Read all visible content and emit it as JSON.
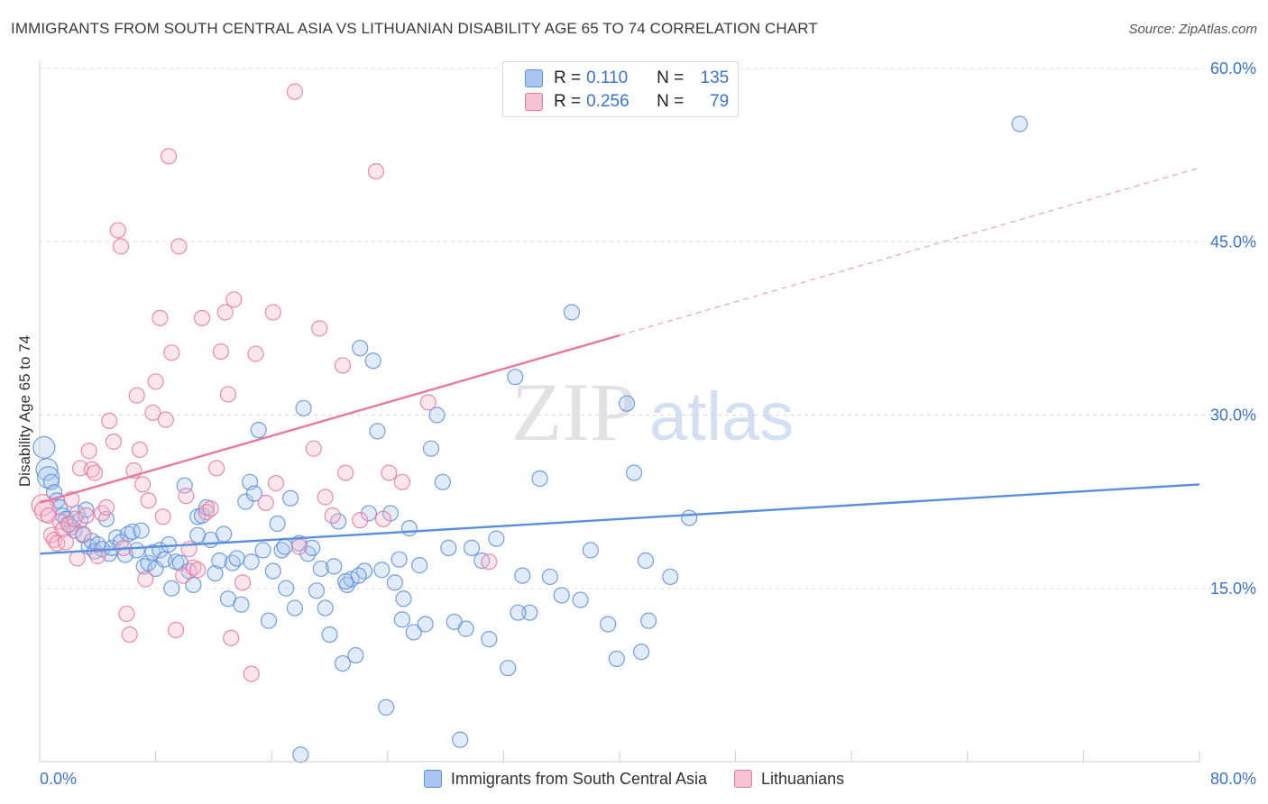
{
  "title": "IMMIGRANTS FROM SOUTH CENTRAL ASIA VS LITHUANIAN DISABILITY AGE 65 TO 74 CORRELATION CHART",
  "source": "Source: ZipAtlas.com",
  "watermark": {
    "zip": "ZIP",
    "atlas": "atlas"
  },
  "stats": [
    {
      "r_label": "R =",
      "r_value": "0.110",
      "n_label": "N =",
      "n_value": "135",
      "color": "#5a8fdc"
    },
    {
      "r_label": "R =",
      "r_value": "0.256",
      "n_label": "N =",
      "n_value": "79",
      "color": "#e8789c"
    }
  ],
  "chart_data": {
    "type": "scatter",
    "xlabel": "",
    "ylabel": "Disability Age 65 to 74",
    "xlim": [
      0,
      80
    ],
    "ylim": [
      0,
      60
    ],
    "x_tick_labels": [
      "0.0%",
      "80.0%"
    ],
    "y_ticks": [
      15,
      30,
      45,
      60
    ],
    "y_tick_labels": [
      "15.0%",
      "30.0%",
      "45.0%",
      "60.0%"
    ],
    "grid": true,
    "legend_position": "bottom-center",
    "series": [
      {
        "name": "Immigrants from South Central Asia",
        "color": "#5a8fdc",
        "fill": "#a9c6ef",
        "trend": {
          "x": [
            0,
            80
          ],
          "y": [
            18.0,
            24.0
          ],
          "dashed_from": null
        },
        "points": [
          [
            0.3,
            27.2
          ],
          [
            0.5,
            25.3
          ],
          [
            0.6,
            24.6
          ],
          [
            0.8,
            24.2
          ],
          [
            1.0,
            23.3
          ],
          [
            1.2,
            22.6
          ],
          [
            1.4,
            22.0
          ],
          [
            1.6,
            21.3
          ],
          [
            1.8,
            21.0
          ],
          [
            2.0,
            20.6
          ],
          [
            2.2,
            20.3
          ],
          [
            2.4,
            20.0
          ],
          [
            2.6,
            21.5
          ],
          [
            2.8,
            20.9
          ],
          [
            3.0,
            19.6
          ],
          [
            3.2,
            21.8
          ],
          [
            3.4,
            18.6
          ],
          [
            3.6,
            19.1
          ],
          [
            3.8,
            18.2
          ],
          [
            4.0,
            18.8
          ],
          [
            4.3,
            18.4
          ],
          [
            4.6,
            21.0
          ],
          [
            4.8,
            18.0
          ],
          [
            5.0,
            18.5
          ],
          [
            5.3,
            19.4
          ],
          [
            5.6,
            19.0
          ],
          [
            5.9,
            17.9
          ],
          [
            6.1,
            19.7
          ],
          [
            6.4,
            19.9
          ],
          [
            6.7,
            18.3
          ],
          [
            7.0,
            20.0
          ],
          [
            7.2,
            16.9
          ],
          [
            7.5,
            17.2
          ],
          [
            7.8,
            18.1
          ],
          [
            8.0,
            16.7
          ],
          [
            8.3,
            18.3
          ],
          [
            8.6,
            17.5
          ],
          [
            8.9,
            18.8
          ],
          [
            9.1,
            15.0
          ],
          [
            9.4,
            17.3
          ],
          [
            9.7,
            17.2
          ],
          [
            10.0,
            23.9
          ],
          [
            10.3,
            16.5
          ],
          [
            10.6,
            15.3
          ],
          [
            10.9,
            21.2
          ],
          [
            11.2,
            21.3
          ],
          [
            11.5,
            22.0
          ],
          [
            11.8,
            19.2
          ],
          [
            12.1,
            16.3
          ],
          [
            12.4,
            17.4
          ],
          [
            12.7,
            19.7
          ],
          [
            13.0,
            14.1
          ],
          [
            13.3,
            17.2
          ],
          [
            13.6,
            17.6
          ],
          [
            13.9,
            13.6
          ],
          [
            14.2,
            22.5
          ],
          [
            14.5,
            24.2
          ],
          [
            14.8,
            23.2
          ],
          [
            15.1,
            28.7
          ],
          [
            15.4,
            18.3
          ],
          [
            15.8,
            12.2
          ],
          [
            16.1,
            16.5
          ],
          [
            16.4,
            20.6
          ],
          [
            16.7,
            18.3
          ],
          [
            17.0,
            15.0
          ],
          [
            17.3,
            22.8
          ],
          [
            17.6,
            13.3
          ],
          [
            17.9,
            18.9
          ],
          [
            18.2,
            30.6
          ],
          [
            18.5,
            18.0
          ],
          [
            18.8,
            18.5
          ],
          [
            19.1,
            14.8
          ],
          [
            19.4,
            16.7
          ],
          [
            19.7,
            13.3
          ],
          [
            20.0,
            11.0
          ],
          [
            20.3,
            16.9
          ],
          [
            20.6,
            20.8
          ],
          [
            20.9,
            8.5
          ],
          [
            21.2,
            15.3
          ],
          [
            21.5,
            15.8
          ],
          [
            21.8,
            9.2
          ],
          [
            22.1,
            35.8
          ],
          [
            22.4,
            16.5
          ],
          [
            22.7,
            21.5
          ],
          [
            23.0,
            34.7
          ],
          [
            23.3,
            28.6
          ],
          [
            23.6,
            16.6
          ],
          [
            23.9,
            4.7
          ],
          [
            24.2,
            21.5
          ],
          [
            24.5,
            15.5
          ],
          [
            24.8,
            17.5
          ],
          [
            25.1,
            14.1
          ],
          [
            25.5,
            20.2
          ],
          [
            25.8,
            11.2
          ],
          [
            26.2,
            17.0
          ],
          [
            26.6,
            11.9
          ],
          [
            27.0,
            27.1
          ],
          [
            27.4,
            30.0
          ],
          [
            27.8,
            24.2
          ],
          [
            28.2,
            18.5
          ],
          [
            28.6,
            12.1
          ],
          [
            29.0,
            1.9
          ],
          [
            29.4,
            11.5
          ],
          [
            29.8,
            18.5
          ],
          [
            30.5,
            17.4
          ],
          [
            31.0,
            10.6
          ],
          [
            31.5,
            19.3
          ],
          [
            32.3,
            8.1
          ],
          [
            32.8,
            33.3
          ],
          [
            33.3,
            16.1
          ],
          [
            33.8,
            12.9
          ],
          [
            34.5,
            24.5
          ],
          [
            35.2,
            16.0
          ],
          [
            36.0,
            14.4
          ],
          [
            36.7,
            38.9
          ],
          [
            37.3,
            14.0
          ],
          [
            38.0,
            18.3
          ],
          [
            39.2,
            11.9
          ],
          [
            39.8,
            8.9
          ],
          [
            40.5,
            31.0
          ],
          [
            41.0,
            25.0
          ],
          [
            41.5,
            9.5
          ],
          [
            41.8,
            17.4
          ],
          [
            42.0,
            12.2
          ],
          [
            43.5,
            16.0
          ],
          [
            18.0,
            0.6
          ],
          [
            25.0,
            12.3
          ],
          [
            33.0,
            12.9
          ],
          [
            44.8,
            21.1
          ],
          [
            67.6,
            55.2
          ],
          [
            16.9,
            18.6
          ],
          [
            14.6,
            17.3
          ],
          [
            10.9,
            19.6
          ],
          [
            22.0,
            16.1
          ],
          [
            21.1,
            15.6
          ]
        ]
      },
      {
        "name": "Lithuanians",
        "color": "#e8789c",
        "fill": "#f5b7ca",
        "trend": {
          "x": [
            0,
            80
          ],
          "y": [
            22.4,
            51.4
          ],
          "dashed_from": 40
        },
        "points": [
          [
            0.2,
            22.2
          ],
          [
            0.4,
            21.7
          ],
          [
            0.6,
            21.3
          ],
          [
            0.8,
            19.6
          ],
          [
            1.0,
            19.2
          ],
          [
            1.2,
            18.9
          ],
          [
            1.4,
            20.8
          ],
          [
            1.6,
            20.1
          ],
          [
            1.8,
            19.0
          ],
          [
            2.0,
            20.5
          ],
          [
            2.2,
            22.7
          ],
          [
            2.4,
            21.0
          ],
          [
            2.6,
            17.6
          ],
          [
            2.8,
            25.4
          ],
          [
            3.0,
            19.7
          ],
          [
            3.2,
            21.3
          ],
          [
            3.4,
            26.9
          ],
          [
            3.6,
            25.3
          ],
          [
            3.8,
            25.0
          ],
          [
            4.0,
            17.8
          ],
          [
            4.3,
            21.5
          ],
          [
            4.6,
            22.0
          ],
          [
            4.8,
            29.5
          ],
          [
            5.1,
            27.7
          ],
          [
            5.4,
            46.0
          ],
          [
            5.6,
            44.6
          ],
          [
            5.8,
            18.5
          ],
          [
            6.0,
            12.8
          ],
          [
            6.2,
            11.0
          ],
          [
            6.5,
            25.2
          ],
          [
            6.7,
            31.7
          ],
          [
            6.9,
            27.0
          ],
          [
            7.1,
            24.0
          ],
          [
            7.3,
            15.8
          ],
          [
            7.5,
            22.6
          ],
          [
            7.8,
            30.2
          ],
          [
            8.0,
            32.9
          ],
          [
            8.3,
            38.4
          ],
          [
            8.5,
            21.2
          ],
          [
            8.7,
            29.6
          ],
          [
            8.9,
            52.4
          ],
          [
            9.1,
            35.4
          ],
          [
            9.4,
            11.4
          ],
          [
            9.6,
            44.6
          ],
          [
            9.9,
            16.1
          ],
          [
            10.1,
            23.0
          ],
          [
            10.3,
            18.4
          ],
          [
            10.6,
            16.8
          ],
          [
            10.9,
            16.6
          ],
          [
            11.2,
            38.4
          ],
          [
            11.5,
            21.6
          ],
          [
            11.8,
            21.9
          ],
          [
            12.2,
            25.4
          ],
          [
            12.5,
            35.5
          ],
          [
            12.8,
            38.9
          ],
          [
            13.0,
            31.8
          ],
          [
            13.2,
            10.7
          ],
          [
            13.4,
            40.0
          ],
          [
            14.0,
            15.5
          ],
          [
            14.6,
            7.6
          ],
          [
            14.9,
            35.3
          ],
          [
            15.6,
            22.4
          ],
          [
            16.1,
            38.9
          ],
          [
            16.3,
            24.1
          ],
          [
            17.6,
            58.0
          ],
          [
            17.9,
            18.6
          ],
          [
            18.9,
            27.1
          ],
          [
            19.3,
            37.5
          ],
          [
            19.7,
            22.9
          ],
          [
            20.2,
            21.3
          ],
          [
            20.9,
            34.3
          ],
          [
            21.1,
            25.0
          ],
          [
            22.1,
            20.9
          ],
          [
            23.2,
            51.1
          ],
          [
            23.7,
            21.0
          ],
          [
            24.1,
            25.0
          ],
          [
            25.0,
            24.2
          ],
          [
            26.8,
            31.1
          ],
          [
            31.0,
            17.3
          ]
        ]
      }
    ]
  }
}
